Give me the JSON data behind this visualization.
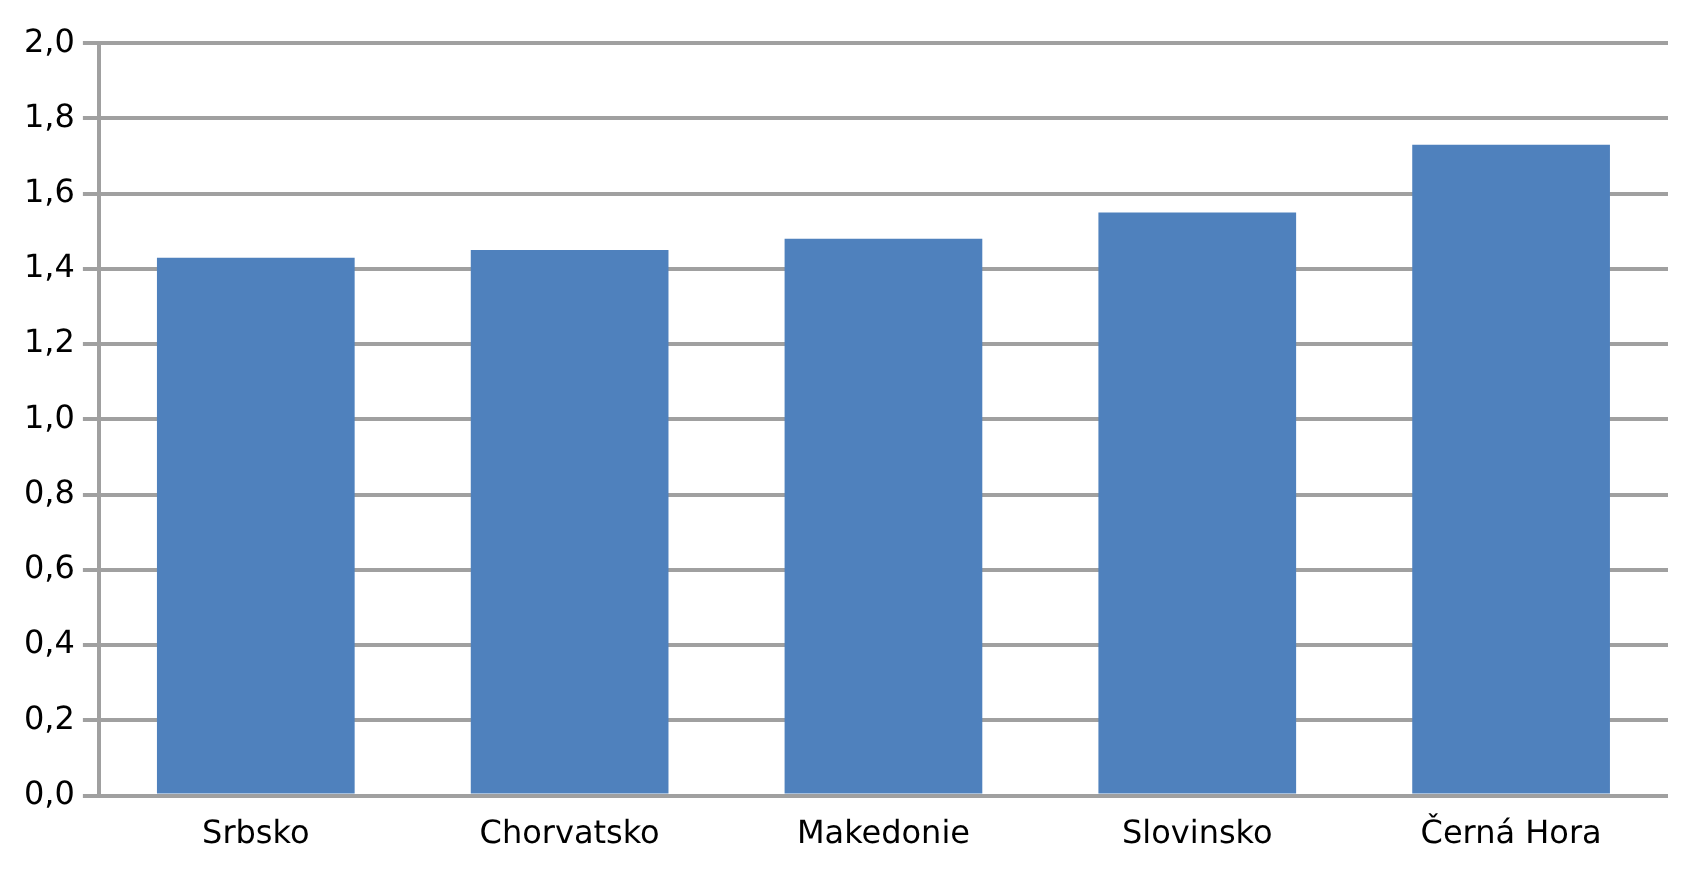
{
  "chart_data": {
    "type": "bar",
    "categories": [
      "Srbsko",
      "Chorvatsko",
      "Makedonie",
      "Slovinsko",
      "Černá Hora"
    ],
    "values": [
      1.43,
      1.45,
      1.48,
      1.55,
      1.73
    ],
    "color": "#4f81bd",
    "ylim": [
      0,
      2
    ],
    "yticks": [
      {
        "value": 0,
        "label": "0,0"
      },
      {
        "value": 0.2,
        "label": "0,2"
      },
      {
        "value": 0.4,
        "label": "0,4"
      },
      {
        "value": 0.6,
        "label": "0,6"
      },
      {
        "value": 0.8,
        "label": "0,8"
      },
      {
        "value": 1,
        "label": "1,0"
      },
      {
        "value": 1.2,
        "label": "1,2"
      },
      {
        "value": 1.4,
        "label": "1,4"
      },
      {
        "value": 1.6,
        "label": "1,6"
      },
      {
        "value": 1.8,
        "label": "1,8"
      },
      {
        "value": 2,
        "label": "2,0"
      }
    ],
    "grid": "y"
  }
}
